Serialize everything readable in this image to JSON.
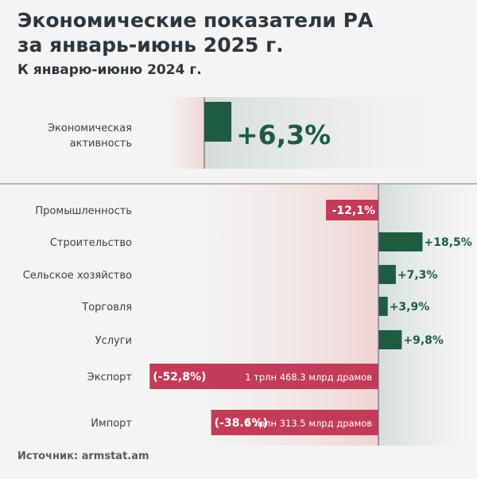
{
  "header": {
    "title_line1": "Экономические показатели РА",
    "title_line2": "за январь-июнь 2025 г.",
    "subtitle": "К январю-июню 2024 г."
  },
  "footer": {
    "source": "Источник: armstat.am"
  },
  "colors": {
    "positive": "#1e5b43",
    "negative": "#c23b57",
    "background": "#f4f4f4",
    "positive_zone": "#d8dedd",
    "negative_zone": "#f2dada"
  },
  "chart_data": {
    "type": "bar",
    "orientation": "horizontal",
    "unit": "%",
    "highlight": {
      "category_line1": "Экономическая",
      "category_line2": "активность",
      "value": 6.3,
      "label": "+6,3%"
    },
    "categories": [
      "Промышленность",
      "Строительство",
      "Сельское хозяйство",
      "Торговля",
      "Услуги",
      "Экспорт",
      "Импорт"
    ],
    "values": [
      -12.1,
      18.5,
      7.3,
      3.9,
      9.8,
      -52.8,
      -38.6
    ],
    "value_labels": [
      "-12,1%",
      "+18,5%",
      "+7,3%",
      "+3,9%",
      "+9,8%",
      "(-52,8%)",
      "(-38.6%)"
    ],
    "annotations": [
      "",
      "",
      "",
      "",
      "",
      "1 трлн 468.3 млрд драмов",
      "2 трлн 313.5 млрд драмов"
    ]
  }
}
